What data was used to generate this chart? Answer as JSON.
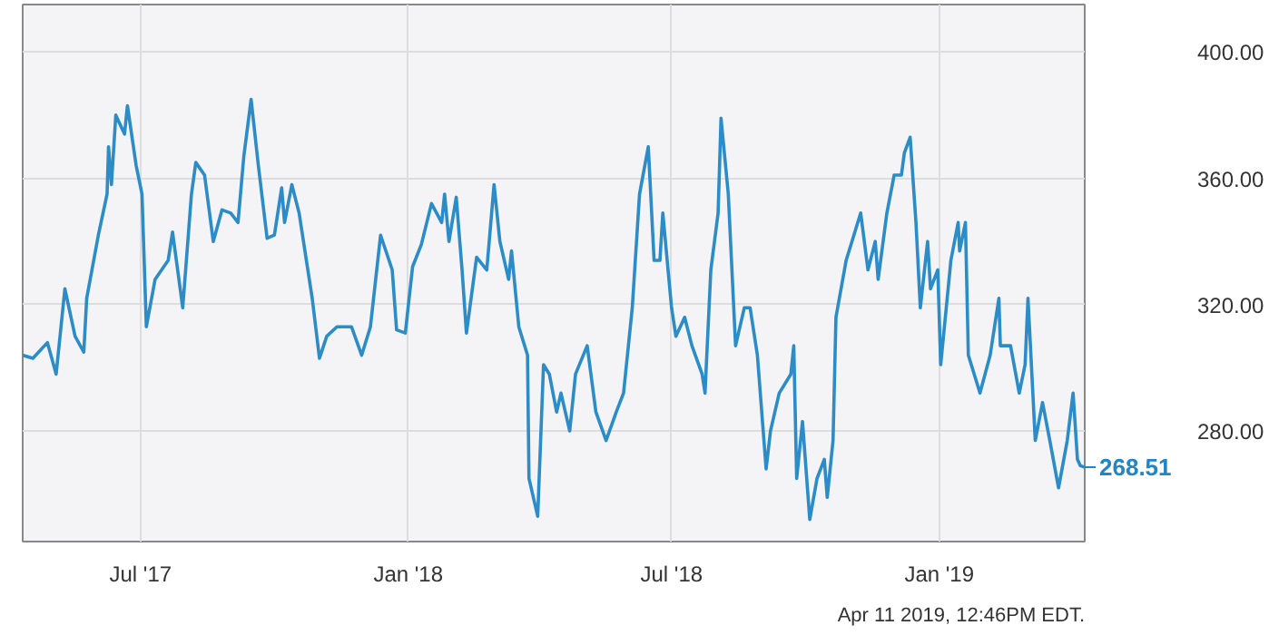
{
  "chart_data": {
    "type": "line",
    "x": [
      "2017-04-11",
      "2017-04-18",
      "2017-04-28",
      "2017-05-04",
      "2017-05-10",
      "2017-05-17",
      "2017-05-23",
      "2017-05-25",
      "2017-06-02",
      "2017-06-08",
      "2017-06-09",
      "2017-06-11",
      "2017-06-14",
      "2017-06-20",
      "2017-06-22",
      "2017-06-28",
      "2017-07-02",
      "2017-07-05",
      "2017-07-11",
      "2017-07-20",
      "2017-07-23",
      "2017-07-30",
      "2017-08-05",
      "2017-08-08",
      "2017-08-14",
      "2017-08-20",
      "2017-08-26",
      "2017-09-01",
      "2017-09-06",
      "2017-09-10",
      "2017-09-15",
      "2017-09-20",
      "2017-09-26",
      "2017-10-01",
      "2017-10-06",
      "2017-10-08",
      "2017-10-13",
      "2017-10-18",
      "2017-10-22",
      "2017-10-27",
      "2017-11-01",
      "2017-11-06",
      "2017-11-13",
      "2017-11-23",
      "2017-11-30",
      "2017-12-06",
      "2017-12-13",
      "2017-12-21",
      "2017-12-24",
      "2017-12-30",
      "2018-01-04",
      "2018-01-10",
      "2018-01-17",
      "2018-01-24",
      "2018-01-26",
      "2018-01-29",
      "2018-02-03",
      "2018-02-07",
      "2018-02-10",
      "2018-02-17",
      "2018-02-24",
      "2018-03-01",
      "2018-03-05",
      "2018-03-11",
      "2018-03-13",
      "2018-03-18",
      "2018-03-24",
      "2018-03-25",
      "2018-03-31",
      "2018-04-04",
      "2018-04-08",
      "2018-04-13",
      "2018-04-16",
      "2018-04-22",
      "2018-04-26",
      "2018-05-04",
      "2018-05-10",
      "2018-05-17",
      "2018-05-24",
      "2018-05-29",
      "2018-06-04",
      "2018-06-09",
      "2018-06-15",
      "2018-06-19",
      "2018-06-23",
      "2018-06-25",
      "2018-07-01",
      "2018-07-04",
      "2018-07-10",
      "2018-07-15",
      "2018-07-22",
      "2018-07-24",
      "2018-07-28",
      "2018-08-02",
      "2018-08-04",
      "2018-08-09",
      "2018-08-14",
      "2018-08-20",
      "2018-08-24",
      "2018-08-29",
      "2018-09-04",
      "2018-09-07",
      "2018-09-13",
      "2018-09-21",
      "2018-09-23",
      "2018-09-25",
      "2018-09-29",
      "2018-10-04",
      "2018-10-09",
      "2018-10-14",
      "2018-10-16",
      "2018-10-20",
      "2018-10-22",
      "2018-10-29",
      "2018-11-02",
      "2018-11-08",
      "2018-11-13",
      "2018-11-18",
      "2018-11-20",
      "2018-11-26",
      "2018-12-01",
      "2018-12-06",
      "2018-12-08",
      "2018-12-12",
      "2018-12-16",
      "2018-12-19",
      "2018-12-24",
      "2018-12-26",
      "2018-12-31",
      "2019-01-02",
      "2019-01-09",
      "2019-01-14",
      "2019-01-15",
      "2019-01-19",
      "2019-01-21",
      "2019-01-29",
      "2019-02-05",
      "2019-02-08",
      "2019-02-11",
      "2019-02-12",
      "2019-02-19",
      "2019-02-25",
      "2019-03-01",
      "2019-03-03",
      "2019-03-06",
      "2019-03-08",
      "2019-03-13",
      "2019-03-18",
      "2019-03-24",
      "2019-03-30",
      "2019-04-03",
      "2019-04-06",
      "2019-04-08",
      "2019-04-11"
    ],
    "series": [
      {
        "color": "#2b8cc8",
        "values": [
          304,
          303,
          308,
          298,
          325,
          310,
          305,
          322,
          342,
          355,
          370,
          358,
          380,
          374,
          383,
          364,
          355,
          313,
          328,
          334,
          343,
          319,
          355,
          365,
          361,
          340,
          350,
          349,
          346,
          367,
          385,
          364,
          341,
          342,
          357,
          346,
          358,
          349,
          337,
          322,
          303,
          310,
          313,
          313,
          304,
          313,
          342,
          331,
          312,
          311,
          332,
          339,
          352,
          346,
          355,
          340,
          354,
          331,
          311,
          335,
          331,
          358,
          340,
          328,
          337,
          313,
          304,
          265,
          253,
          301,
          298,
          286,
          292,
          280,
          298,
          307,
          286,
          277,
          286,
          292,
          319,
          355,
          370,
          334,
          334,
          349,
          319,
          310,
          316,
          307,
          298,
          292,
          331,
          349,
          379,
          355,
          307,
          319,
          319,
          304,
          268,
          280,
          292,
          298,
          307,
          265,
          283,
          252,
          265,
          271,
          259,
          277,
          316,
          334,
          340,
          349,
          331,
          340,
          328,
          349,
          361,
          361,
          368,
          373,
          346,
          319,
          340,
          325,
          331,
          301,
          334,
          346,
          337,
          346,
          304,
          292,
          304,
          313,
          322,
          307,
          307,
          292,
          301,
          322,
          295,
          277,
          289,
          277,
          262,
          277,
          292,
          271,
          269,
          268.51
        ],
        "value_labels": [
          null,
          null,
          null,
          null,
          null,
          null,
          null,
          null,
          null,
          null,
          null,
          null,
          null,
          null,
          null,
          null,
          null,
          null,
          null,
          null,
          null,
          null,
          null,
          null,
          null,
          null,
          null,
          null,
          null,
          null,
          null,
          null,
          null,
          null,
          null,
          null,
          null,
          null,
          null,
          null,
          null,
          null,
          null,
          null,
          null,
          null,
          null,
          null,
          null,
          null,
          null,
          null,
          null,
          null,
          null,
          null,
          null,
          null,
          null,
          null,
          null,
          null,
          null,
          null,
          null,
          null,
          null,
          null,
          null,
          null,
          null,
          null,
          null,
          null,
          null,
          null,
          null,
          null,
          null,
          null,
          null,
          null,
          null,
          null,
          null,
          null,
          null,
          null,
          null,
          null,
          null,
          null,
          null,
          null,
          null,
          null,
          null,
          null,
          null,
          null,
          null,
          null,
          null,
          null,
          null,
          null,
          null,
          null,
          null,
          null,
          null,
          null,
          null,
          null,
          null,
          null,
          null,
          null,
          null,
          null,
          null,
          null,
          null,
          null,
          null,
          null,
          null,
          null,
          null,
          null,
          null,
          null,
          null,
          null,
          null,
          null,
          null,
          null,
          null,
          null,
          null,
          null,
          null,
          null,
          null,
          null,
          null,
          null,
          null,
          null,
          null,
          null,
          null,
          "268.51"
        ]
      }
    ],
    "xlim": [
      "2017-04-11",
      "2019-04-11"
    ],
    "xticks": [
      {
        "value": "2017-07-01",
        "label": "Jul '17"
      },
      {
        "value": "2018-01-01",
        "label": "Jan '18"
      },
      {
        "value": "2018-07-01",
        "label": "Jul '18"
      },
      {
        "value": "2019-01-01",
        "label": "Jan '19"
      }
    ],
    "ylim": [
      245,
      415
    ],
    "yticks": [
      {
        "value": 280,
        "label": "280.00"
      },
      {
        "value": 320,
        "label": "320.00"
      },
      {
        "value": 360,
        "label": "360.00"
      },
      {
        "value": 400,
        "label": "400.00"
      }
    ],
    "grid": true,
    "annotations": [
      "Apr 11 2019, 12:46PM EDT."
    ]
  }
}
